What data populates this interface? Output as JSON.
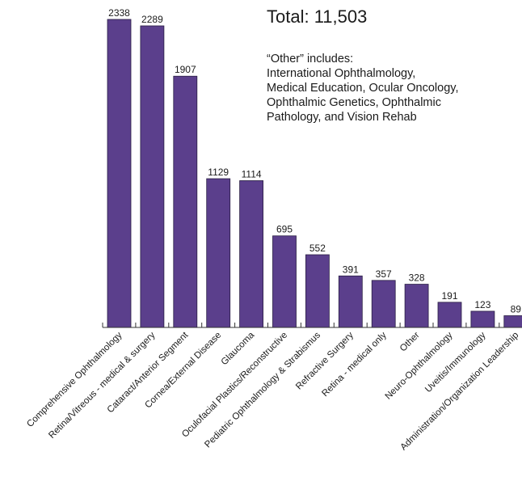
{
  "total_label": "Total: 11,503",
  "note_lines": [
    "“Other” includes:",
    "International Ophthalmology,",
    "Medical Education, Ocular Oncology,",
    "Ophthalmic Genetics, Ophthalmic",
    "Pathology, and Vision Rehab"
  ],
  "chart_data": {
    "type": "bar",
    "categories": [
      "Comprehensive Ophthalmology",
      "Retina/Vitreous - medical & surgery",
      "Cataract/Anterior Segment",
      "Cornea/External Disease",
      "Glaucoma",
      "Oculofacial Plastics/Reconstructive",
      "Pediatric Ophthalmology & Strabismus",
      "Refractive Surgery",
      "Retina - medical only",
      "Other",
      "Neuro-Ophthalmology",
      "Uveitis/Immunology",
      "Administration/Organization Leadership"
    ],
    "values": [
      2338,
      2289,
      1907,
      1129,
      1114,
      695,
      552,
      391,
      357,
      328,
      191,
      123,
      89
    ],
    "value_labels": [
      "2338",
      "2289",
      "1907",
      "1129",
      "1114",
      "695",
      "552",
      "391",
      "357",
      "328",
      "191",
      "123",
      "89"
    ],
    "ylim": [
      0,
      2338
    ],
    "bar_color": "#5b3f8c",
    "title": "",
    "xlabel": "",
    "ylabel": "",
    "legend": "none",
    "grid": false
  }
}
